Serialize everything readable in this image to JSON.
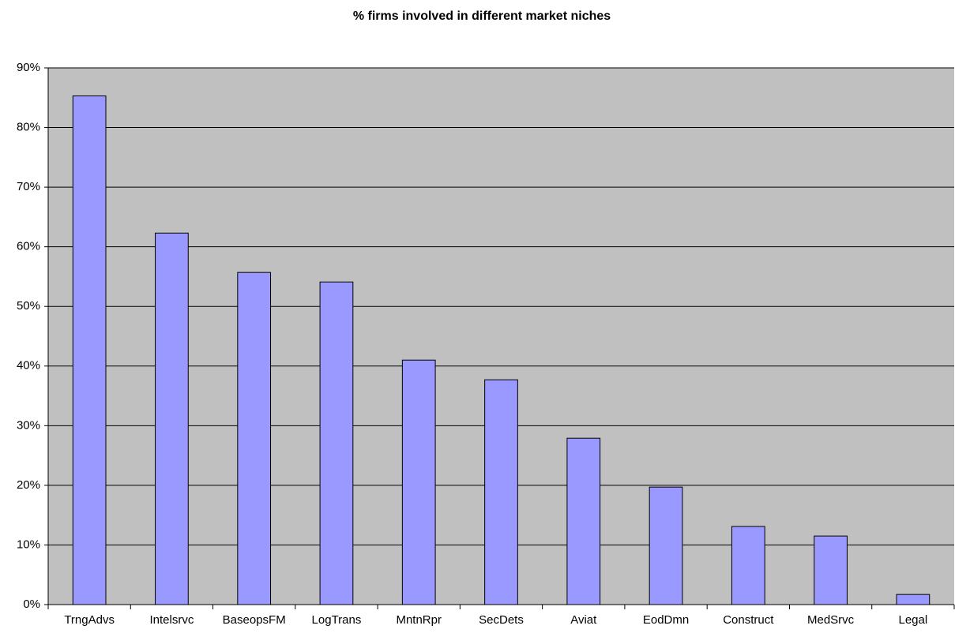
{
  "chart_data": {
    "type": "bar",
    "title": "% firms involved in different market niches",
    "categories": [
      "TrngAdvs",
      "Intelsrvc",
      "BaseopsFM",
      "LogTrans",
      "MntnRpr",
      "SecDets",
      "Aviat",
      "EodDmn",
      "Construct",
      "MedSrvc",
      "Legal"
    ],
    "values": [
      85.3,
      62.3,
      55.7,
      54.1,
      41.0,
      37.7,
      27.9,
      19.7,
      13.1,
      11.5,
      1.7
    ],
    "color": "#9999ff",
    "ylim": [
      0,
      90
    ],
    "yticks": [
      {
        "value": 0,
        "label": "0%"
      },
      {
        "value": 10,
        "label": "10%"
      },
      {
        "value": 20,
        "label": "20%"
      },
      {
        "value": 30,
        "label": "30%"
      },
      {
        "value": 40,
        "label": "40%"
      },
      {
        "value": 50,
        "label": "50%"
      },
      {
        "value": 60,
        "label": "60%"
      },
      {
        "value": 70,
        "label": "70%"
      },
      {
        "value": 80,
        "label": "80%"
      },
      {
        "value": 90,
        "label": "90%"
      }
    ],
    "grid": true
  }
}
